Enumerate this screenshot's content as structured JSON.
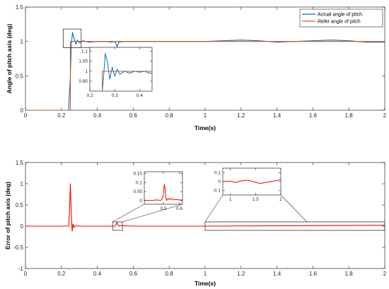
{
  "chart_data": [
    {
      "type": "line",
      "xlabel": "Time(s)",
      "ylabel": "Angle of pitch axis (deg)",
      "xlim": [
        0,
        2
      ],
      "ylim": [
        0,
        1.5
      ],
      "xticks": [
        "0",
        "0.2",
        "0.4",
        "0.6",
        "0.8",
        "1",
        "1.2",
        "1.4",
        "1.6",
        "1.8",
        "2"
      ],
      "yticks": [
        "0",
        "0.5",
        "1",
        "1.5"
      ],
      "legend_position": "top-right",
      "series": [
        {
          "name": "Actual angle of pitch",
          "color": "#0072bd",
          "x": [
            0,
            0.24,
            0.25,
            0.255,
            0.262,
            0.27,
            0.28,
            0.29,
            0.3,
            0.32,
            0.35,
            0.4,
            0.45,
            0.48,
            0.5,
            0.51,
            0.52,
            0.55,
            0.6,
            0.8,
            1.0,
            1.1,
            1.2,
            1.3,
            1.4,
            1.5,
            1.6,
            1.7,
            1.8,
            1.9,
            2.0
          ],
          "y": [
            0,
            0,
            0.5,
            0.95,
            1.13,
            1.05,
            0.96,
            1.02,
            0.98,
            1.01,
            0.99,
            1.0,
            1.0,
            0.99,
            1.0,
            0.92,
            0.99,
            1.0,
            1.0,
            1.0,
            1.0,
            1.01,
            1.02,
            1.01,
            0.99,
            1.0,
            1.01,
            1.02,
            1.01,
            0.99,
            0.99
          ]
        },
        {
          "name": "Refer angle of pitch",
          "color": "#d95319",
          "x": [
            0,
            0.25,
            0.25,
            2.0
          ],
          "y": [
            0,
            0,
            1,
            1
          ]
        }
      ],
      "inset": {
        "xlim": [
          0.2,
          0.45
        ],
        "ylim": [
          0.9,
          1.12
        ],
        "xticks": [
          "0.2",
          "0.3",
          "0.4"
        ],
        "yticks": [
          "0.95",
          "1",
          "1.05",
          "1.1"
        ],
        "series": [
          {
            "name": "Actual angle of pitch",
            "color": "#0072bd",
            "x": [
              0.25,
              0.255,
              0.262,
              0.27,
              0.28,
              0.29,
              0.3,
              0.31,
              0.32,
              0.34,
              0.36,
              0.38,
              0.4,
              0.42,
              0.44,
              0.45
            ],
            "y": [
              0.9,
              0.97,
              1.09,
              1.05,
              0.96,
              1.02,
              0.975,
              1.01,
              0.985,
              1.0,
              0.99,
              1.0,
              0.995,
              1.0,
              0.99,
              0.99
            ]
          },
          {
            "name": "Refer angle of pitch",
            "color": "#d95319",
            "x": [
              0.25,
              0.25,
              0.45
            ],
            "y": [
              0.9,
              1.0,
              1.0
            ]
          }
        ]
      }
    },
    {
      "type": "line",
      "xlabel": "Time(s)",
      "ylabel": "Error of pitch axis (deg)",
      "xlim": [
        0,
        2
      ],
      "ylim": [
        -1,
        1.5
      ],
      "xticks": [
        "0",
        "0.2",
        "0.4",
        "0.6",
        "0.8",
        "1",
        "1.2",
        "1.4",
        "1.6",
        "1.8",
        "2"
      ],
      "yticks": [
        "-1",
        "-0.5",
        "0",
        "0.5",
        "1",
        "1.5"
      ],
      "series": [
        {
          "color": "#ff0000",
          "x": [
            0,
            0.24,
            0.245,
            0.25,
            0.255,
            0.26,
            0.265,
            0.27,
            0.28,
            0.3,
            0.5,
            0.505,
            0.51,
            0.515,
            0.52,
            0.53,
            0.6,
            1.0,
            1.5,
            2.0
          ],
          "y": [
            0,
            0,
            0.3,
            1.0,
            0.3,
            -0.12,
            0.05,
            -0.03,
            0.01,
            0,
            0,
            0.05,
            0.09,
            0.03,
            0,
            0.01,
            0,
            0,
            0.01,
            0.02
          ]
        }
      ],
      "insets": [
        {
          "xlim": [
            0.38,
            0.62
          ],
          "ylim": [
            -0.02,
            0.16
          ],
          "xticks": [
            "0.5",
            "0.6"
          ],
          "yticks": [
            "0",
            "0.05",
            "0.1",
            "0.15"
          ],
          "x": [
            0.38,
            0.42,
            0.46,
            0.48,
            0.49,
            0.5,
            0.505,
            0.51,
            0.515,
            0.52,
            0.53,
            0.54,
            0.55,
            0.56,
            0.58,
            0.6,
            0.62
          ],
          "y": [
            0.002,
            0.0,
            0.004,
            0.001,
            0.005,
            0.03,
            0.09,
            0.07,
            0.02,
            0.0,
            0.012,
            0.005,
            0.014,
            0.004,
            0.006,
            0.004,
            0.003
          ]
        },
        {
          "xlim": [
            0.85,
            2.0
          ],
          "ylim": [
            -0.15,
            0.15
          ],
          "xticks": [
            "1",
            "1.5",
            "2"
          ],
          "yticks": [
            "-0.1",
            "0",
            "0.1"
          ],
          "x": [
            0.85,
            1.0,
            1.1,
            1.2,
            1.3,
            1.4,
            1.5,
            1.6,
            1.7,
            1.8,
            1.9,
            2.0
          ],
          "y": [
            0.0,
            0.005,
            -0.01,
            0.005,
            0.015,
            0.01,
            -0.01,
            -0.02,
            -0.01,
            0.0,
            0.01,
            0.02
          ]
        }
      ]
    }
  ]
}
